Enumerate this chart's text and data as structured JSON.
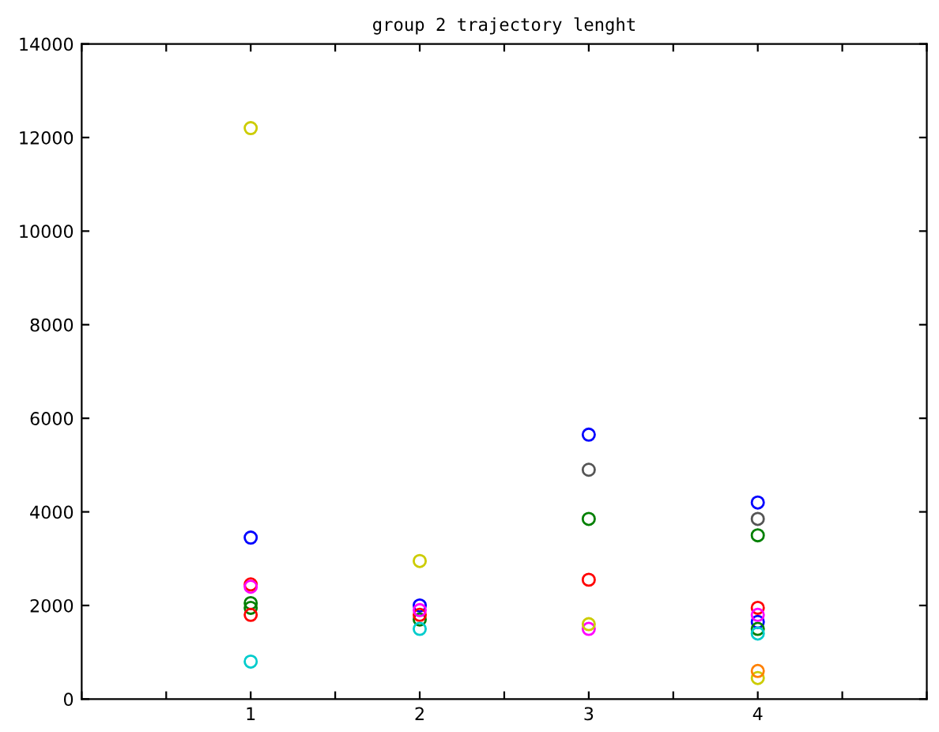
{
  "chart_data": {
    "type": "scatter",
    "title": "group 2 trajectory lenght",
    "marker": "circle",
    "grid": false,
    "legend": false,
    "xlim": [
      0,
      5
    ],
    "xticks": [
      {
        "value": 0,
        "label": null
      },
      {
        "value": 0.5,
        "label": null
      },
      1,
      {
        "value": 1.5,
        "label": null
      },
      2,
      {
        "value": 2.5,
        "label": null
      },
      3,
      {
        "value": 3.5,
        "label": null
      },
      4,
      {
        "value": 4.5,
        "label": null
      },
      {
        "value": 5,
        "label": null
      }
    ],
    "ylim": [
      0,
      14000
    ],
    "yticks": [
      0,
      2000,
      4000,
      6000,
      8000,
      10000,
      12000,
      14000
    ],
    "series": [
      {
        "color": "#0000ff",
        "x": [
          1,
          2,
          3,
          4,
          4
        ],
        "values": [
          3450,
          2000,
          5650,
          4200,
          1650
        ]
      },
      {
        "color": "#555555",
        "x": [
          3,
          4
        ],
        "values": [
          4900,
          3850
        ]
      },
      {
        "color": "#008000",
        "x": [
          1,
          2,
          3,
          4,
          1,
          4
        ],
        "values": [
          2050,
          1700,
          3850,
          3500,
          1950,
          1500
        ]
      },
      {
        "color": "#ff0000",
        "x": [
          1,
          2,
          3,
          4,
          1
        ],
        "values": [
          1800,
          1800,
          2550,
          1950,
          2450
        ]
      },
      {
        "color": "#ff00ff",
        "x": [
          1,
          2,
          3,
          4
        ],
        "values": [
          2400,
          1900,
          1500,
          1800
        ]
      },
      {
        "color": "#00cccc",
        "x": [
          1,
          2,
          4
        ],
        "values": [
          800,
          1500,
          1400
        ]
      },
      {
        "color": "#cccc00",
        "x": [
          1,
          2,
          3,
          4
        ],
        "values": [
          12200,
          2950,
          1600,
          450
        ]
      },
      {
        "color": "#ff8000",
        "x": [
          4
        ],
        "values": [
          600
        ]
      }
    ]
  }
}
